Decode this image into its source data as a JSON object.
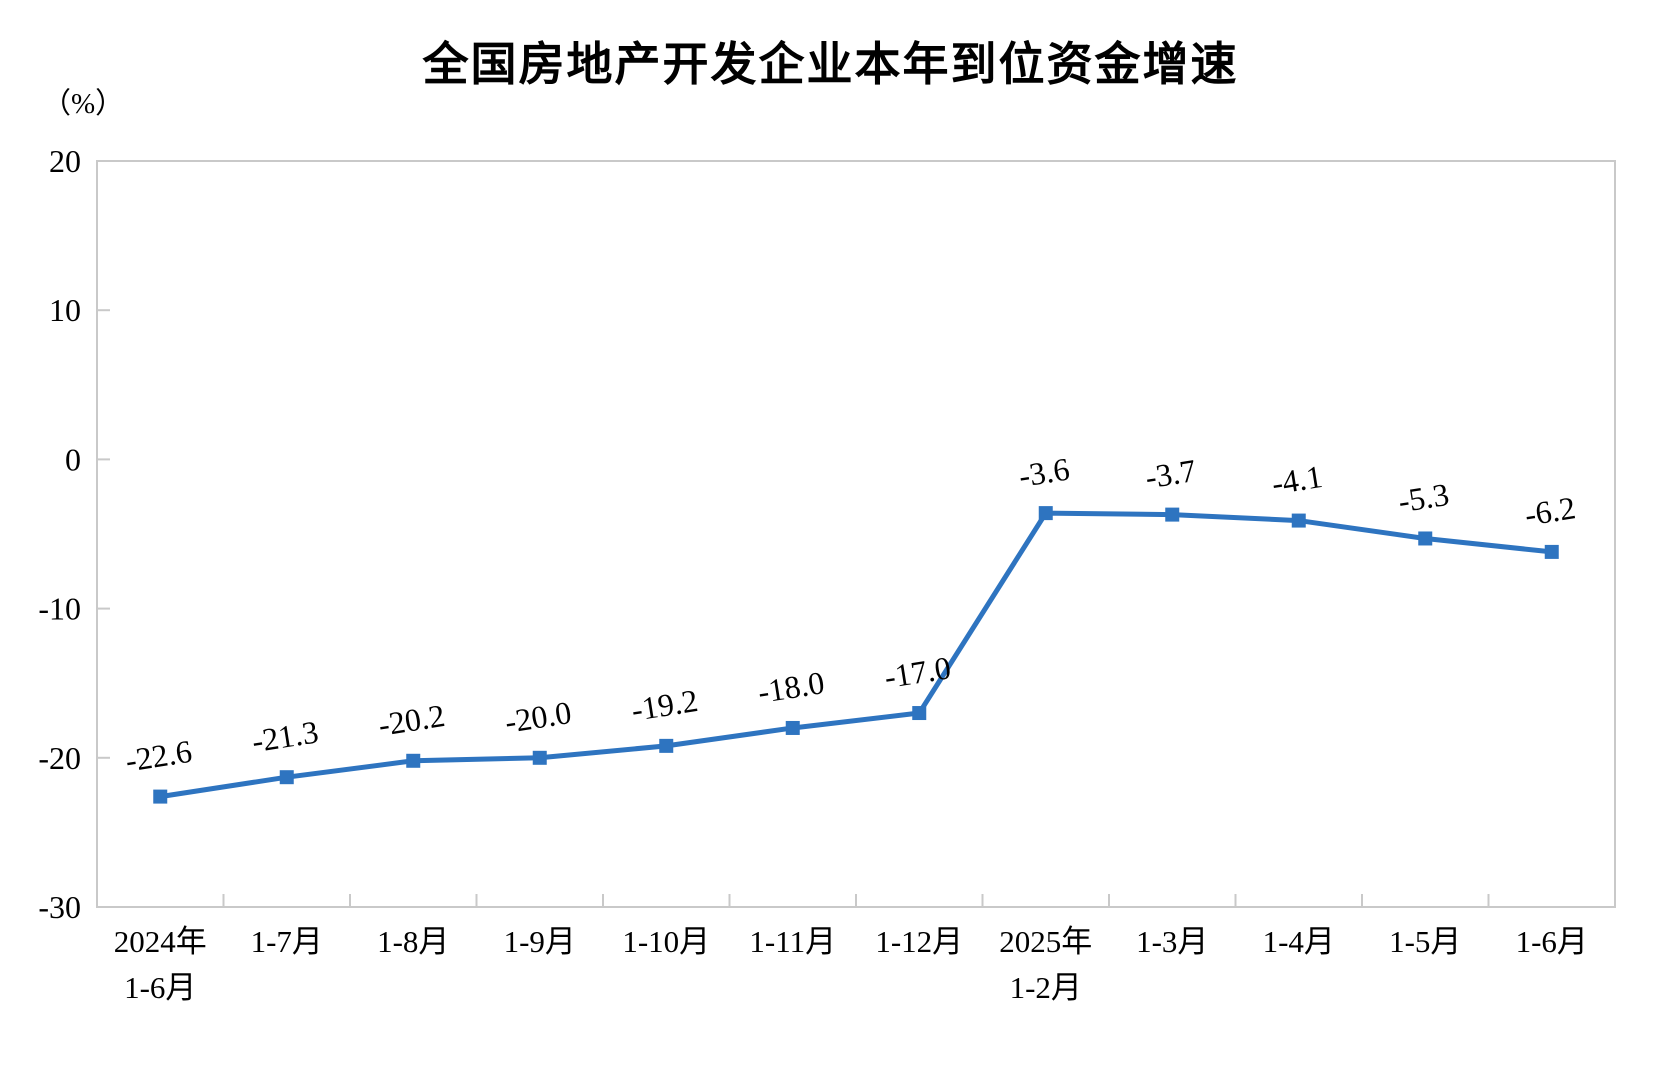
{
  "chart_data": {
    "type": "line",
    "title": "全国房地产开发企业本年到位资金增速",
    "unit_label": "（%）",
    "categories": [
      {
        "line1": "2024年",
        "line2": "1-6月"
      },
      {
        "line1": "1-7月",
        "line2": ""
      },
      {
        "line1": "1-8月",
        "line2": ""
      },
      {
        "line1": "1-9月",
        "line2": ""
      },
      {
        "line1": "1-10月",
        "line2": ""
      },
      {
        "line1": "1-11月",
        "line2": ""
      },
      {
        "line1": "1-12月",
        "line2": ""
      },
      {
        "line1": "2025年",
        "line2": "1-2月"
      },
      {
        "line1": "1-3月",
        "line2": ""
      },
      {
        "line1": "1-4月",
        "line2": ""
      },
      {
        "line1": "1-5月",
        "line2": ""
      },
      {
        "line1": "1-6月",
        "line2": ""
      }
    ],
    "values": [
      -22.6,
      -21.3,
      -20.2,
      -20.0,
      -19.2,
      -18.0,
      -17.0,
      -3.6,
      -3.7,
      -4.1,
      -5.3,
      -6.2
    ],
    "value_labels": [
      "-22.6",
      "-21.3",
      "-20.2",
      "-20.0",
      "-19.2",
      "-18.0",
      "-17.0",
      "-3.6",
      "-3.7",
      "-4.1",
      "-5.3",
      "-6.2"
    ],
    "ylim": [
      -30,
      20
    ],
    "yticks": [
      20,
      10,
      0,
      -10,
      -20,
      -30
    ],
    "grid": false,
    "legend": "none",
    "colors": {
      "line": "#2E74C0",
      "marker": "#2E74C0",
      "axis": "#C9C9C9",
      "text": "#000000"
    }
  }
}
